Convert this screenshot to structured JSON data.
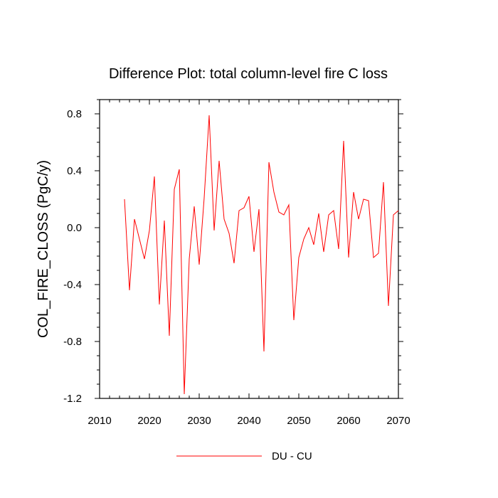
{
  "chart_data": {
    "type": "line",
    "title": "Difference Plot: total column-level fire C loss",
    "xlabel": "",
    "ylabel": "COL_FIRE_CLOSS  (PgC/y)",
    "xlim": [
      2010,
      2070
    ],
    "ylim": [
      -1.2,
      0.9
    ],
    "x_ticks": [
      2010,
      2020,
      2030,
      2040,
      2050,
      2060,
      2070
    ],
    "x_tick_labels": [
      "2010",
      "2020",
      "2030",
      "2040",
      "2050",
      "2060",
      "2070"
    ],
    "y_ticks": [
      -1.2,
      -0.8,
      -0.4,
      0.0,
      0.4,
      0.8
    ],
    "y_tick_labels": [
      "-1.2",
      "-0.8",
      "-0.4",
      "0.0",
      "0.4",
      "0.8"
    ],
    "grid": false,
    "legend_position": "bottom-center",
    "series": [
      {
        "name": "DU - CU",
        "color": "#ff0000",
        "x": [
          2015,
          2016,
          2017,
          2018,
          2019,
          2020,
          2021,
          2022,
          2023,
          2024,
          2025,
          2026,
          2027,
          2028,
          2029,
          2030,
          2031,
          2032,
          2033,
          2034,
          2035,
          2036,
          2037,
          2038,
          2039,
          2040,
          2041,
          2042,
          2043,
          2044,
          2045,
          2046,
          2047,
          2048,
          2049,
          2050,
          2051,
          2052,
          2053,
          2054,
          2055,
          2056,
          2057,
          2058,
          2059,
          2060,
          2061,
          2062,
          2063,
          2064,
          2065,
          2066,
          2067,
          2068,
          2069,
          2070
        ],
        "values": [
          0.2,
          -0.44,
          0.06,
          -0.08,
          -0.22,
          -0.02,
          0.36,
          -0.54,
          0.05,
          -0.76,
          0.27,
          0.41,
          -1.17,
          -0.22,
          0.15,
          -0.26,
          0.21,
          0.79,
          -0.02,
          0.47,
          0.06,
          -0.04,
          -0.25,
          0.12,
          0.14,
          0.22,
          -0.17,
          0.13,
          -0.87,
          0.46,
          0.25,
          0.11,
          0.09,
          0.16,
          -0.65,
          -0.21,
          -0.08,
          0.0,
          -0.12,
          0.1,
          -0.17,
          0.09,
          0.12,
          -0.15,
          0.61,
          -0.21,
          0.25,
          0.06,
          0.2,
          0.19,
          -0.21,
          -0.18,
          0.32,
          -0.55,
          0.09,
          0.12
        ]
      }
    ]
  }
}
